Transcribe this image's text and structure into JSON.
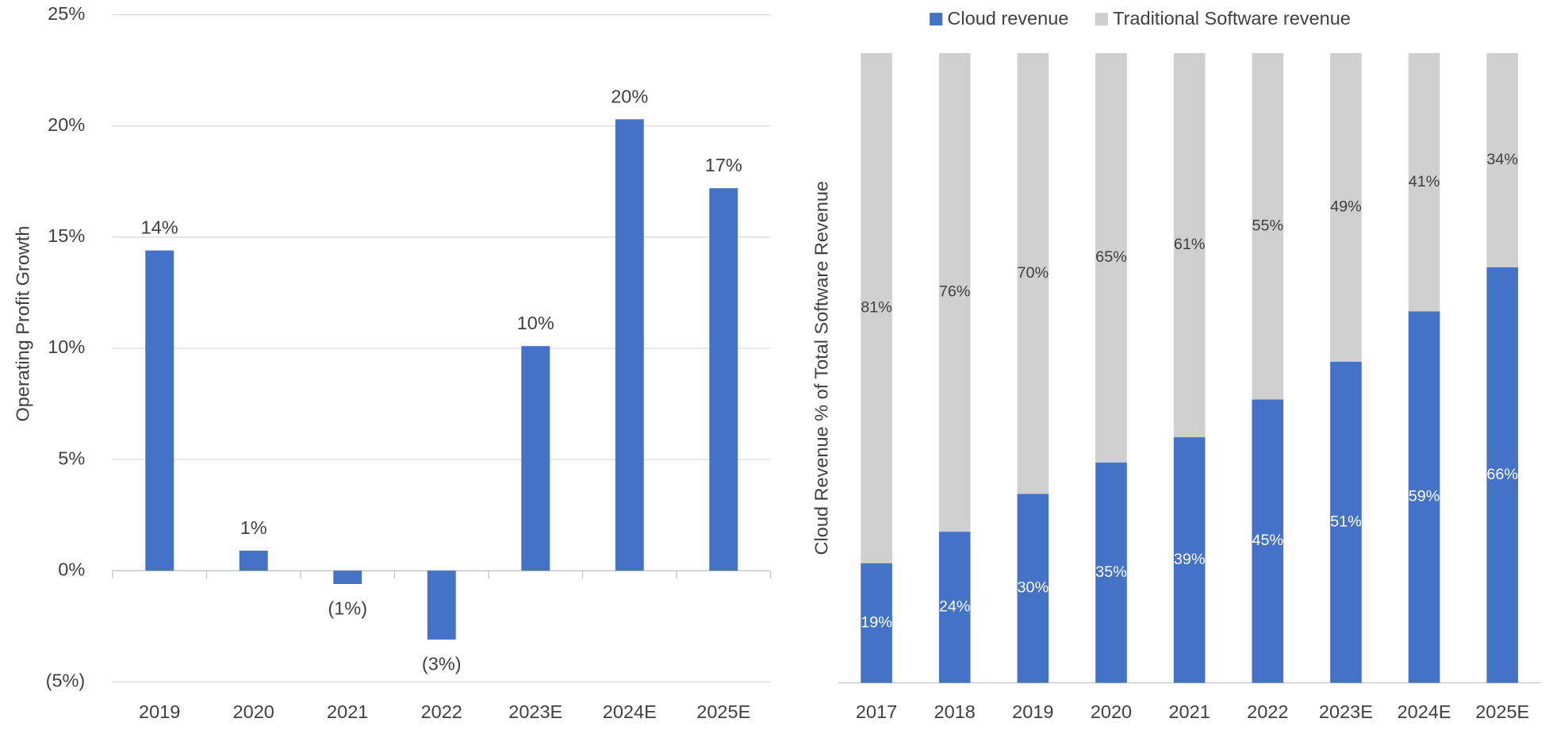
{
  "chart_data": [
    {
      "type": "bar",
      "y_label": "Operating Profit Growth",
      "categories": [
        "2019",
        "2020",
        "2021",
        "2022",
        "2023E",
        "2024E",
        "2025E"
      ],
      "values": [
        14.4,
        0.9,
        -0.6,
        -3.1,
        10.1,
        20.3,
        17.2
      ],
      "value_labels": [
        "14%",
        "1%",
        "(1%)",
        "(3%)",
        "10%",
        "20%",
        "17%"
      ],
      "color": "#4472c4",
      "ylim": [
        -5,
        25
      ],
      "yticks": [
        {
          "value": -5,
          "label": "(5%)"
        },
        {
          "value": 0,
          "label": "0%"
        },
        {
          "value": 5,
          "label": "5%"
        },
        {
          "value": 10,
          "label": "10%"
        },
        {
          "value": 15,
          "label": "15%"
        },
        {
          "value": 20,
          "label": "20%"
        },
        {
          "value": 25,
          "label": "25%"
        }
      ],
      "grid": true
    },
    {
      "type": "stacked_bar",
      "y_label": "Cloud Revenue % of Total Software Revenue",
      "categories": [
        "2017",
        "2018",
        "2019",
        "2020",
        "2021",
        "2022",
        "2023E",
        "2024E",
        "2025E"
      ],
      "series": [
        {
          "name": "Cloud revenue",
          "color": "#4472c4",
          "values": [
            19,
            24,
            30,
            35,
            39,
            45,
            51,
            59,
            66
          ],
          "value_labels": [
            "19%",
            "24%",
            "30%",
            "35%",
            "39%",
            "45%",
            "51%",
            "59%",
            "66%"
          ]
        },
        {
          "name": "Traditional Software revenue",
          "color": "#d0cfcf",
          "values": [
            81,
            76,
            70,
            65,
            61,
            55,
            49,
            41,
            34
          ],
          "value_labels": [
            "81%",
            "76%",
            "70%",
            "65%",
            "61%",
            "55%",
            "49%",
            "41%",
            "34%"
          ]
        }
      ],
      "ylim": [
        0,
        100
      ],
      "legend": "top"
    }
  ]
}
